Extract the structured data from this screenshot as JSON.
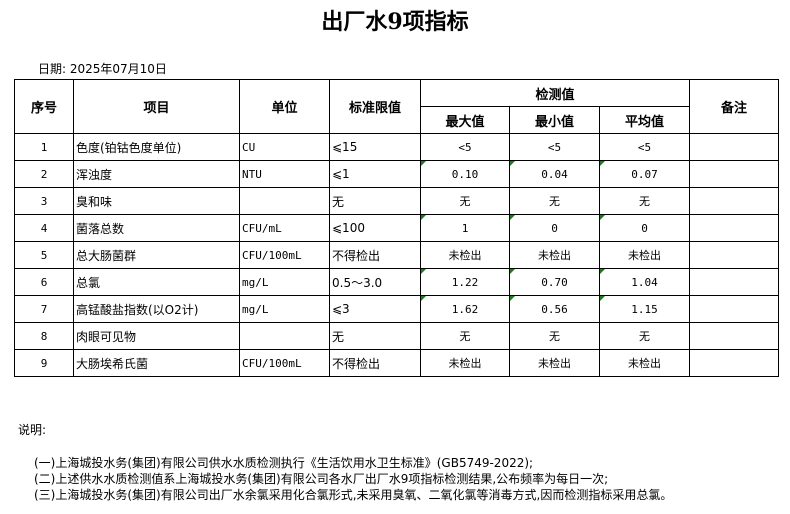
{
  "title": "出厂水9项指标",
  "date": "日期: 2025年07月10日",
  "table": {
    "headers": {
      "index": "序号",
      "item": "项目",
      "unit": "单位",
      "limit": "标准限值",
      "measured": "检测值",
      "max": "最大值",
      "min": "最小值",
      "avg": "平均值",
      "remark": "备注"
    },
    "rows": [
      {
        "index": "1",
        "item": "色度(铂钴色度单位)",
        "unit": "CU",
        "limit": "⩽15",
        "max": "<5",
        "min": "<5",
        "avg": "<5",
        "remark": "",
        "flag": false
      },
      {
        "index": "2",
        "item": "浑浊度",
        "unit": "NTU",
        "limit": "⩽1",
        "max": "0.10",
        "min": "0.04",
        "avg": "0.07",
        "remark": "",
        "flag": true
      },
      {
        "index": "3",
        "item": "臭和味",
        "unit": "",
        "limit": "无",
        "max": "无",
        "min": "无",
        "avg": "无",
        "remark": "",
        "flag": false
      },
      {
        "index": "4",
        "item": "菌落总数",
        "unit": "CFU/mL",
        "limit": "⩽100",
        "max": "1",
        "min": "0",
        "avg": "0",
        "remark": "",
        "flag": true
      },
      {
        "index": "5",
        "item": "总大肠菌群",
        "unit": "CFU/100mL",
        "limit": "不得检出",
        "max": "未检出",
        "min": "未检出",
        "avg": "未检出",
        "remark": "",
        "flag": false
      },
      {
        "index": "6",
        "item": "总氯",
        "unit": "mg/L",
        "limit": "0.5～3.0",
        "max": "1.22",
        "min": "0.70",
        "avg": "1.04",
        "remark": "",
        "flag": true
      },
      {
        "index": "7",
        "item": "高锰酸盐指数(以O2计)",
        "unit": "mg/L",
        "limit": "⩽3",
        "max": "1.62",
        "min": "0.56",
        "avg": "1.15",
        "remark": "",
        "flag": true
      },
      {
        "index": "8",
        "item": "肉眼可见物",
        "unit": "",
        "limit": "无",
        "max": "无",
        "min": "无",
        "avg": "无",
        "remark": "",
        "flag": false
      },
      {
        "index": "9",
        "item": "大肠埃希氏菌",
        "unit": "CFU/100mL",
        "limit": "不得检出",
        "max": "未检出",
        "min": "未检出",
        "avg": "未检出",
        "remark": "",
        "flag": false
      }
    ]
  },
  "notes": {
    "label": "说明:",
    "lines": [
      "(一)上海城投水务(集团)有限公司供水水质检测执行《生活饮用水卫生标准》(GB5749-2022);",
      "(二)上述供水水质检测值系上海城投水务(集团)有限公司各水厂出厂水9项指标检测结果,公布频率为每日一次;",
      "(三)上海城投水务(集团)有限公司出厂水余氯采用化合氯形式,未采用臭氧、二氧化氯等消毒方式,因而检测指标采用总氯。"
    ]
  },
  "colors": {
    "flag": "#1a7f1a"
  }
}
